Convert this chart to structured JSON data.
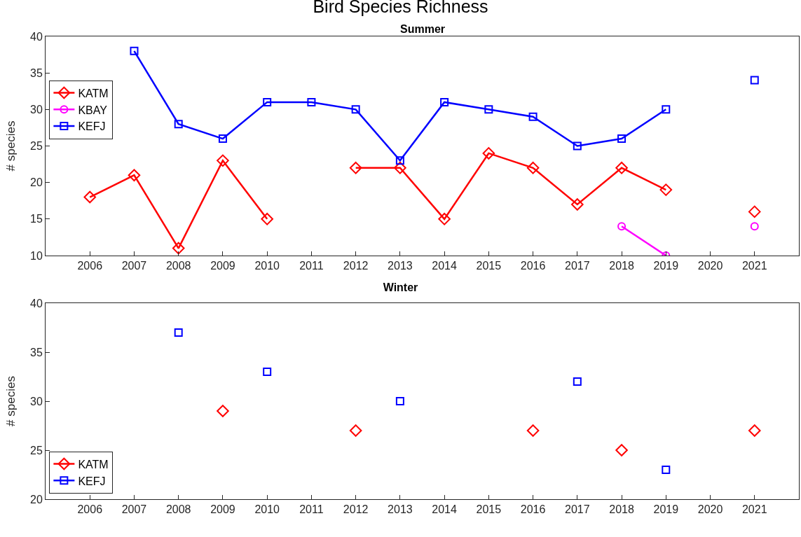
{
  "chart_data": [
    {
      "type": "line",
      "title": "Bird Species Richness",
      "subtitle": "Summer",
      "ylabel": "# species",
      "x": [
        2006,
        2007,
        2008,
        2009,
        2010,
        2011,
        2012,
        2013,
        2014,
        2015,
        2016,
        2017,
        2018,
        2019,
        2020,
        2021
      ],
      "xlim": [
        2005,
        2022
      ],
      "xticks": [
        2006,
        2007,
        2008,
        2009,
        2010,
        2011,
        2012,
        2013,
        2014,
        2015,
        2016,
        2017,
        2018,
        2019,
        2020,
        2021
      ],
      "ylim": [
        10,
        40
      ],
      "yticks": [
        10,
        15,
        20,
        25,
        30,
        35,
        40
      ],
      "grid": false,
      "legend": "top left",
      "line_style": "solid",
      "series": [
        {
          "name": "KATM",
          "color": "#ff0000",
          "marker": "diamond",
          "values": [
            18,
            21,
            11,
            23,
            15,
            null,
            22,
            22,
            15,
            24,
            22,
            17,
            22,
            19,
            null,
            16
          ]
        },
        {
          "name": "KBAY",
          "color": "#ff00ff",
          "marker": "circle",
          "values": [
            null,
            null,
            null,
            null,
            null,
            null,
            null,
            null,
            null,
            null,
            null,
            null,
            14,
            10,
            null,
            14
          ]
        },
        {
          "name": "KEFJ",
          "color": "#0000ff",
          "marker": "square",
          "values": [
            null,
            38,
            28,
            26,
            31,
            31,
            30,
            23,
            31,
            30,
            29,
            25,
            26,
            30,
            null,
            34
          ]
        }
      ]
    },
    {
      "type": "line",
      "title": "Winter",
      "ylabel": "# species",
      "xlim": [
        2005,
        2022
      ],
      "xticks": [
        2006,
        2007,
        2008,
        2009,
        2010,
        2011,
        2012,
        2013,
        2014,
        2015,
        2016,
        2017,
        2018,
        2019,
        2020,
        2021
      ],
      "ylim": [
        20,
        40
      ],
      "yticks": [
        20,
        25,
        30,
        35,
        40
      ],
      "grid": false,
      "legend": "bottom left",
      "line_style": "solid",
      "series": [
        {
          "name": "KATM",
          "color": "#ff0000",
          "marker": "diamond",
          "x": [
            2009,
            2010,
            2012,
            2013,
            2016,
            2017,
            2018,
            2019,
            2021
          ],
          "values": [
            29,
            null,
            27,
            null,
            27,
            null,
            25,
            null,
            27
          ]
        },
        {
          "name": "KEFJ",
          "color": "#0000ff",
          "marker": "square",
          "x": [
            2008,
            2009,
            2010,
            2012,
            2013,
            2016,
            2017,
            2018,
            2019
          ],
          "values": [
            37,
            null,
            33,
            null,
            30,
            null,
            32,
            null,
            23
          ]
        }
      ]
    }
  ]
}
